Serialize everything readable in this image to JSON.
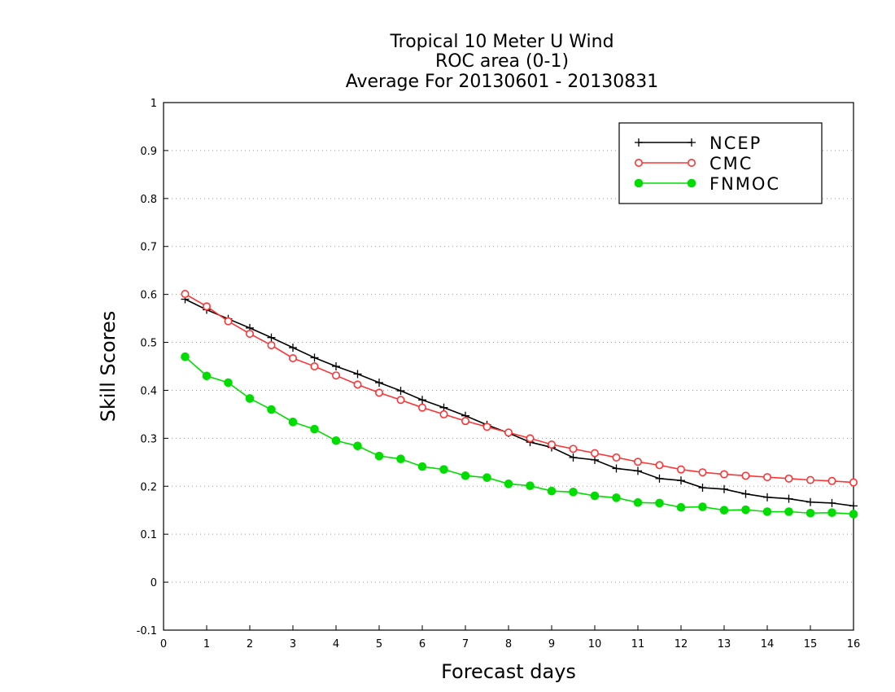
{
  "chart_data": {
    "type": "line",
    "title_lines": [
      "Tropical 10 Meter U Wind",
      "ROC area (0-1)",
      "Average For 20130601 - 20130831"
    ],
    "xlabel": "Forecast days",
    "ylabel": "Skill Scores",
    "xlim": [
      0,
      16
    ],
    "ylim": [
      -0.1,
      1
    ],
    "x_ticks": [
      0,
      1,
      2,
      3,
      4,
      5,
      6,
      7,
      8,
      9,
      10,
      11,
      12,
      13,
      14,
      15,
      16
    ],
    "x_tick_labels": [
      "0",
      "1",
      "2",
      "3",
      "4",
      "5",
      "6",
      "7",
      "8",
      "9",
      "10",
      "11",
      "12",
      "13",
      "14",
      "15",
      "16"
    ],
    "y_ticks": [
      -0.1,
      0,
      0.1,
      0.2,
      0.3,
      0.4,
      0.5,
      0.6,
      0.7,
      0.8,
      0.9,
      1
    ],
    "y_tick_labels": [
      "-0.1",
      "0",
      "0.1",
      "0.2",
      "0.3",
      "0.4",
      "0.5",
      "0.6",
      "0.7",
      "0.8",
      "0.9",
      "1"
    ],
    "grid": true,
    "legend_position": "top-right",
    "x": [
      0.5,
      1,
      1.5,
      2,
      2.5,
      3,
      3.5,
      4,
      4.5,
      5,
      5.5,
      6,
      6.5,
      7,
      7.5,
      8,
      8.5,
      9,
      9.5,
      10,
      10.5,
      11,
      11.5,
      12,
      12.5,
      13,
      13.5,
      14,
      14.5,
      15,
      15.5,
      16
    ],
    "series": [
      {
        "name": "NCEP",
        "color": "#000000",
        "marker": "plus",
        "values": [
          0.59,
          0.568,
          0.549,
          0.53,
          0.51,
          0.489,
          0.468,
          0.45,
          0.434,
          0.416,
          0.399,
          0.38,
          0.364,
          0.347,
          0.328,
          0.311,
          0.292,
          0.281,
          0.26,
          0.255,
          0.237,
          0.232,
          0.216,
          0.212,
          0.197,
          0.194,
          0.184,
          0.177,
          0.174,
          0.167,
          0.165,
          0.159
        ]
      },
      {
        "name": "CMC",
        "color": "#ff3333",
        "marker": "open-circle",
        "values": [
          0.601,
          0.575,
          0.544,
          0.518,
          0.494,
          0.467,
          0.45,
          0.431,
          0.412,
          0.395,
          0.38,
          0.364,
          0.35,
          0.336,
          0.324,
          0.312,
          0.3,
          0.287,
          0.278,
          0.269,
          0.26,
          0.251,
          0.244,
          0.235,
          0.229,
          0.225,
          0.222,
          0.219,
          0.216,
          0.213,
          0.211,
          0.208
        ]
      },
      {
        "name": "FNMOC",
        "color": "#00dd00",
        "marker": "filled-circle",
        "values": [
          0.47,
          0.43,
          0.416,
          0.383,
          0.36,
          0.334,
          0.319,
          0.295,
          0.284,
          0.263,
          0.257,
          0.241,
          0.235,
          0.222,
          0.218,
          0.205,
          0.201,
          0.19,
          0.188,
          0.18,
          0.176,
          0.166,
          0.165,
          0.156,
          0.157,
          0.15,
          0.151,
          0.147,
          0.147,
          0.144,
          0.145,
          0.142
        ]
      }
    ]
  }
}
